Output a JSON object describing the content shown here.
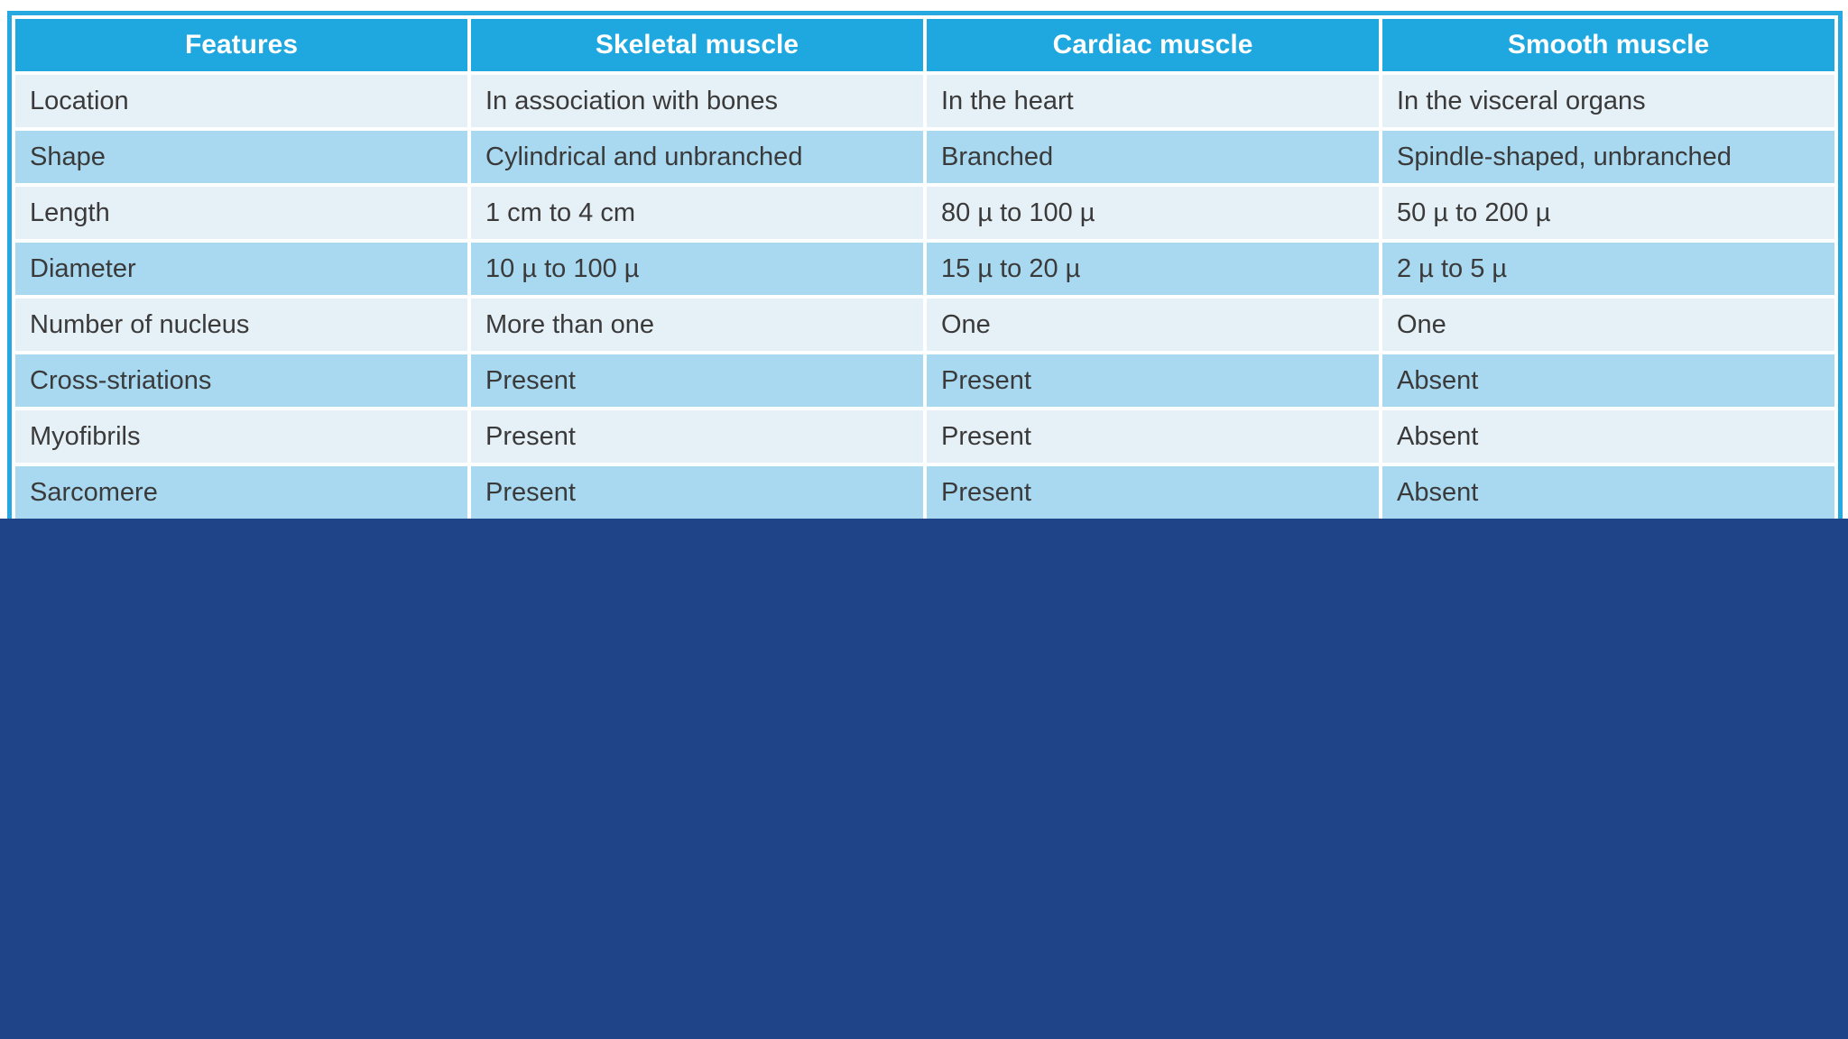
{
  "colors": {
    "header_bg": "#1fa8df",
    "header_text": "#ffffff",
    "row_light": "#e6f0f7",
    "row_medium": "#a8d9f0",
    "body_text": "#3a3a3a",
    "table_border": "#25a9e0",
    "cell_divider": "#ffffff",
    "footer_panel": "#1f4487",
    "page_background": "#ffffff"
  },
  "table": {
    "columns": [
      "Features",
      "Skeletal muscle",
      "Cardiac muscle",
      "Smooth muscle"
    ],
    "rows": [
      [
        "Location",
        "In association with bones",
        "In the heart",
        "In the visceral organs"
      ],
      [
        "Shape",
        "Cylindrical and  unbranched",
        "Branched",
        "Spindle-shaped, unbranched"
      ],
      [
        "Length",
        "1 cm to 4 cm",
        "80 µ to 100 µ",
        "50 µ to 200 µ"
      ],
      [
        "Diameter",
        "10 µ to 100 µ",
        "15 µ to 20 µ",
        "2 µ to 5 µ"
      ],
      [
        "Number of nucleus",
        "More than one",
        "One",
        "One"
      ],
      [
        "Cross-striations",
        "Present",
        "Present",
        "Absent"
      ],
      [
        "Myofibrils",
        "Present",
        "Present",
        "Absent"
      ],
      [
        "Sarcomere",
        "Present",
        "Present",
        "Absent"
      ]
    ]
  }
}
